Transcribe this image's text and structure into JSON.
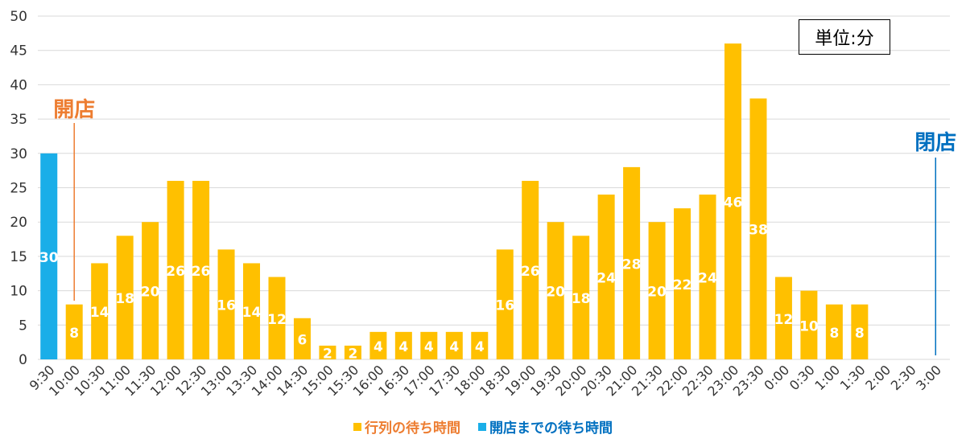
{
  "chart_data": {
    "type": "bar",
    "categories": [
      "9:30",
      "10:00",
      "10:30",
      "11:00",
      "11:30",
      "12:00",
      "12:30",
      "13:00",
      "13:30",
      "14:00",
      "14:30",
      "15:00",
      "15:30",
      "16:00",
      "16:30",
      "17:00",
      "17:30",
      "18:00",
      "18:30",
      "19:00",
      "19:30",
      "20:00",
      "20:30",
      "21:00",
      "21:30",
      "22:00",
      "22:30",
      "23:00",
      "23:30",
      "0:00",
      "0:30",
      "1:00",
      "1:30",
      "2:00",
      "2:30",
      "3:00"
    ],
    "series": [
      {
        "name": "開店までの待ち時間",
        "color": "#1aaee8",
        "values": [
          30,
          null,
          null,
          null,
          null,
          null,
          null,
          null,
          null,
          null,
          null,
          null,
          null,
          null,
          null,
          null,
          null,
          null,
          null,
          null,
          null,
          null,
          null,
          null,
          null,
          null,
          null,
          null,
          null,
          null,
          null,
          null,
          null,
          null,
          null,
          null
        ]
      },
      {
        "name": "行列の待ち時間",
        "color": "#ffc000",
        "values": [
          null,
          8,
          14,
          18,
          20,
          26,
          26,
          16,
          14,
          12,
          6,
          2,
          2,
          4,
          4,
          4,
          4,
          4,
          16,
          26,
          20,
          18,
          24,
          28,
          20,
          22,
          24,
          46,
          38,
          12,
          10,
          8,
          8,
          null,
          null,
          null
        ]
      }
    ],
    "ylim": [
      0,
      50
    ],
    "yticks": [
      0,
      5,
      10,
      15,
      20,
      25,
      30,
      35,
      40,
      45,
      50
    ],
    "grid": true,
    "legend_position": "bottom",
    "unit_label": "単位:分",
    "annotations": [
      {
        "text": "開店",
        "category": "10:00",
        "color": "#ed7d31"
      },
      {
        "text": "閉店",
        "category": "3:00",
        "color": "#0070c0"
      }
    ]
  }
}
